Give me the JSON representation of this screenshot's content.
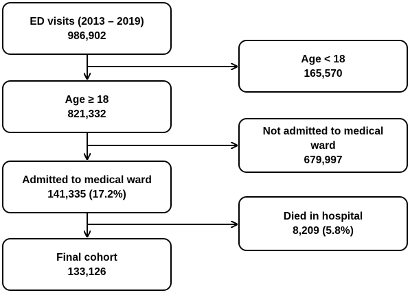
{
  "flowchart": {
    "nodes": {
      "ed_visits": {
        "title": "ED visits (2013 – 2019)",
        "value": "986,902"
      },
      "age_under_18": {
        "title": "Age < 18",
        "value": "165,570"
      },
      "age_18_plus": {
        "title": "Age ≥ 18",
        "value": "821,332"
      },
      "not_admitted": {
        "title": "Not admitted to medical ward",
        "value": "679,997"
      },
      "admitted": {
        "title": "Admitted to medical ward",
        "value": "141,335 (17.2%)"
      },
      "died": {
        "title": "Died in hospital",
        "value": "8,209 (5.8%)"
      },
      "final_cohort": {
        "title": "Final cohort",
        "value": "133,126"
      }
    },
    "edges": [
      {
        "from": "ed_visits",
        "to": "age_18_plus"
      },
      {
        "from": "ed_visits",
        "to": "age_under_18"
      },
      {
        "from": "age_18_plus",
        "to": "admitted"
      },
      {
        "from": "age_18_plus",
        "to": "not_admitted"
      },
      {
        "from": "admitted",
        "to": "final_cohort"
      },
      {
        "from": "admitted",
        "to": "died"
      }
    ]
  }
}
